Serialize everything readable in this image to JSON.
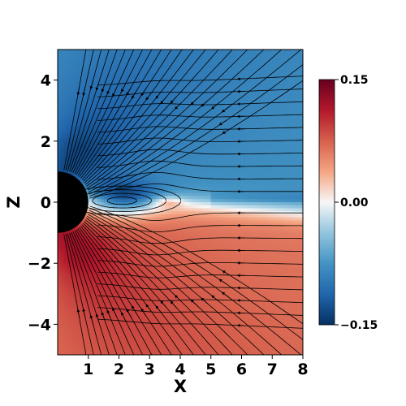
{
  "chart_data": {
    "type": "heatmap",
    "title": "",
    "xlabel": "X",
    "ylabel": "Z",
    "xlim": [
      0,
      8
    ],
    "ylim": [
      -5,
      5
    ],
    "xticks": [
      "1",
      "2",
      "3",
      "4",
      "5",
      "6",
      "7",
      "8"
    ],
    "yticks": [
      "4",
      "2",
      "0",
      "−2",
      "−4"
    ],
    "colorbar": {
      "min": -0.15,
      "max": 0.15,
      "ticks": [
        "0.15",
        "0.00",
        "−0.15"
      ],
      "colormap": "RdBu_r",
      "colors": [
        "#053061",
        "#2166ac",
        "#4393c3",
        "#92c5de",
        "#f7f7f7",
        "#f4a582",
        "#d6604d",
        "#b2182b",
        "#67001f"
      ]
    },
    "obstacle": {
      "center": [
        0,
        0
      ],
      "radius": 1,
      "color": "#000000"
    },
    "streamlines": true,
    "field_description": "upper half negative (blue), lower half positive (red), dark blue wake pocket behind sphere near x 1-3.5"
  }
}
